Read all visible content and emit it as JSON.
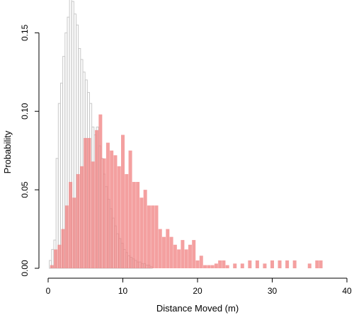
{
  "chart_data": {
    "type": "bar",
    "title": "",
    "xlabel": "Distance Moved (m)",
    "ylabel": "Probability",
    "xlim": [
      0,
      40
    ],
    "ylim": [
      0,
      0.17
    ],
    "xticks": [
      "0",
      "10",
      "20",
      "30",
      "40"
    ],
    "yticks": [
      "0.00",
      "0.05",
      "0.10",
      "0.15"
    ],
    "grid": false,
    "legend": "none",
    "series": [
      {
        "color": "#c8c8c8",
        "style": "outline",
        "x": [
          0.3,
          0.6,
          0.9,
          1.2,
          1.5,
          1.8,
          2.1,
          2.4,
          2.7,
          3.0,
          3.3,
          3.6,
          3.9,
          4.2,
          4.5,
          4.8,
          5.1,
          5.4,
          5.7,
          6.0,
          6.3,
          6.6,
          6.9,
          7.2,
          7.5,
          7.8,
          8.1,
          8.4,
          8.7,
          9.0,
          9.3,
          9.6,
          9.9,
          10.2,
          10.5,
          10.8,
          11.1,
          11.4,
          11.7,
          12.0,
          12.3,
          12.6,
          12.9,
          13.2,
          13.5,
          13.8
        ],
        "values": [
          0.005,
          0.012,
          0.018,
          0.07,
          0.105,
          0.118,
          0.135,
          0.15,
          0.16,
          0.174,
          0.17,
          0.162,
          0.155,
          0.14,
          0.133,
          0.125,
          0.12,
          0.112,
          0.105,
          0.09,
          0.085,
          0.09,
          0.078,
          0.07,
          0.06,
          0.052,
          0.044,
          0.038,
          0.032,
          0.027,
          0.022,
          0.019,
          0.016,
          0.012,
          0.01,
          0.008,
          0.007,
          0.006,
          0.005,
          0.004,
          0.004,
          0.003,
          0.003,
          0.002,
          0.002,
          0.001
        ]
      },
      {
        "color": "#f08080",
        "style": "filled",
        "x": [
          0.5,
          1,
          1.5,
          2,
          2.5,
          3,
          3.5,
          4,
          4.5,
          5,
          5.5,
          6,
          6.5,
          7,
          7.5,
          8,
          8.5,
          9,
          9.5,
          10,
          10.5,
          11,
          11.5,
          12,
          12.5,
          13,
          13.5,
          14,
          14.5,
          15,
          15.5,
          16,
          16.5,
          17,
          17.5,
          18,
          18.5,
          19,
          19.5,
          20,
          20.5,
          21,
          21.5,
          22,
          22.5,
          23,
          23.5,
          24,
          25,
          26,
          27,
          28,
          29,
          30,
          31,
          32,
          33,
          35,
          36,
          36.5
        ],
        "values": [
          0.002,
          0.012,
          0.015,
          0.025,
          0.04,
          0.055,
          0.045,
          0.06,
          0.065,
          0.083,
          0.083,
          0.068,
          0.088,
          0.098,
          0.07,
          0.08,
          0.075,
          0.072,
          0.065,
          0.085,
          0.06,
          0.075,
          0.055,
          0.055,
          0.045,
          0.05,
          0.04,
          0.04,
          0.04,
          0.025,
          0.02,
          0.025,
          0.02,
          0.015,
          0.012,
          0.018,
          0.012,
          0.015,
          0.018,
          0.005,
          0.008,
          0.002,
          0.002,
          0.002,
          0.003,
          0.005,
          0.005,
          0.002,
          0.003,
          0.003,
          0.005,
          0.005,
          0.003,
          0.005,
          0.005,
          0.005,
          0.005,
          0.003,
          0.005,
          0.005
        ]
      }
    ]
  }
}
